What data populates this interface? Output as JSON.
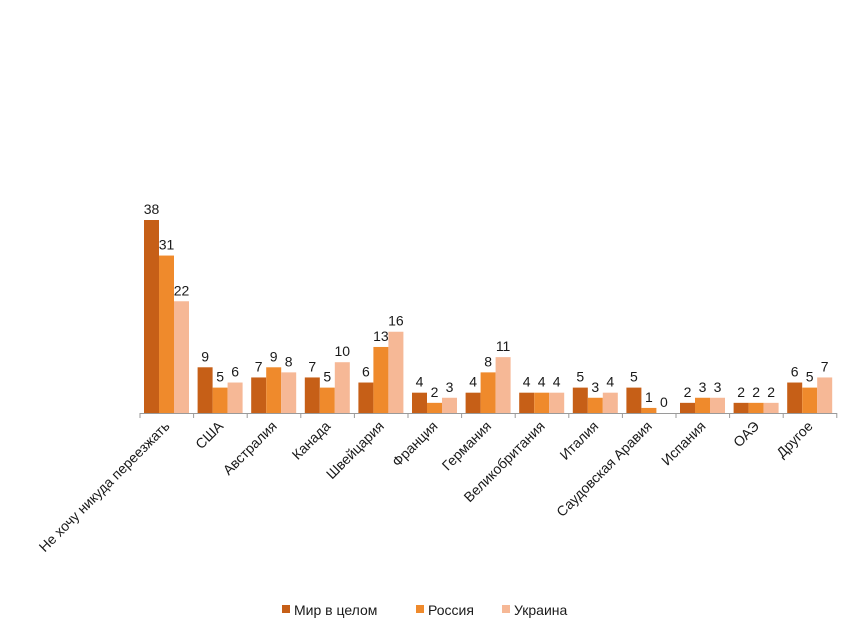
{
  "chart_data": {
    "type": "bar",
    "categories": [
      "Не хочу никуда переезжать",
      "США",
      "Австралия",
      "Канада",
      "Швейцария",
      "Франция",
      "Германия",
      "Великобритания",
      "Италия",
      "Саудовская Аравия",
      "Испания",
      "ОАЭ",
      "Другое"
    ],
    "series": [
      {
        "name": "Мир в целом",
        "color": "#c65f17",
        "values": [
          38,
          9,
          7,
          7,
          6,
          4,
          4,
          4,
          5,
          5,
          2,
          2,
          6
        ]
      },
      {
        "name": "Россия",
        "color": "#ef8a2c",
        "values": [
          31,
          5,
          9,
          5,
          13,
          2,
          8,
          4,
          3,
          1,
          3,
          2,
          5
        ]
      },
      {
        "name": "Украина",
        "color": "#f6b896",
        "values": [
          22,
          6,
          8,
          10,
          16,
          3,
          11,
          4,
          4,
          0,
          3,
          2,
          7
        ]
      }
    ],
    "ylim": [
      0,
      38
    ],
    "grid": false,
    "legend": "bottom",
    "axis_color": "#9a9a9a"
  }
}
